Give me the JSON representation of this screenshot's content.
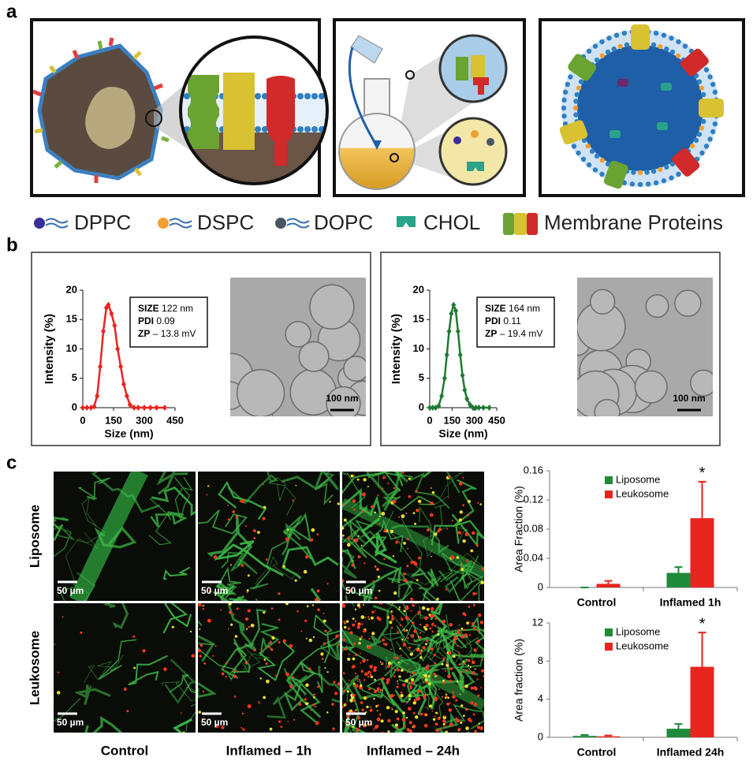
{
  "panel_labels": [
    "a",
    "b",
    "c"
  ],
  "legend": [
    "DPPC",
    "DSPC",
    "DOPC",
    "CHOL",
    "Membrane Proteins"
  ],
  "microscopy": {
    "rows": [
      "Liposome",
      "Leukosome"
    ],
    "columns": [
      "Control",
      "Inflamed – 1h",
      "Inflamed – 24h"
    ],
    "scale_bar": "50 µm"
  },
  "chart_data": [
    {
      "type": "line",
      "ylabel": "Intensity (%)",
      "xlabel": "Size (nm)",
      "xlim": [
        0,
        450
      ],
      "ylim": [
        0,
        20
      ],
      "xticks": [
        0,
        150,
        300,
        450
      ],
      "yticks": [
        0,
        5,
        10,
        15,
        20
      ],
      "series": [
        {
          "color": "#e8251f",
          "x": [
            0,
            20,
            40,
            55,
            70,
            85,
            100,
            115,
            125,
            140,
            155,
            170,
            185,
            200,
            215,
            230,
            250,
            270,
            300,
            330,
            360,
            400
          ],
          "values": [
            0,
            0,
            0,
            0.2,
            2,
            7,
            13,
            17,
            17.5,
            16,
            14,
            10,
            7,
            4,
            2,
            0.5,
            0,
            0,
            0,
            0,
            0,
            0
          ]
        }
      ],
      "stats": [
        {
          "key": "SIZE",
          "value": "122 nm"
        },
        {
          "key": "PDI",
          "value": "0.09"
        },
        {
          "key": "ZP",
          "value": "– 13.8 mV"
        }
      ],
      "image_scale_bar": "100 nm"
    },
    {
      "type": "line",
      "ylabel": "Intensity (%)",
      "xlabel": "Size (nm)",
      "xlim": [
        0,
        450
      ],
      "ylim": [
        0,
        20
      ],
      "xticks": [
        0,
        150,
        300,
        450
      ],
      "yticks": [
        0,
        5,
        10,
        15,
        20
      ],
      "series": [
        {
          "color": "#1e7a32",
          "x": [
            0,
            20,
            40,
            60,
            80,
            100,
            115,
            130,
            145,
            160,
            175,
            190,
            205,
            220,
            235,
            250,
            270,
            290,
            310,
            330,
            360,
            400
          ],
          "values": [
            0,
            0,
            0,
            0.3,
            2,
            5,
            9,
            13,
            16,
            17.5,
            16.5,
            13,
            9,
            5.5,
            3,
            1.5,
            0.5,
            0,
            0,
            0,
            0,
            0
          ]
        }
      ],
      "stats": [
        {
          "key": "SIZE",
          "value": "164 nm"
        },
        {
          "key": "PDI",
          "value": "0.11"
        },
        {
          "key": "ZP",
          "value": "– 19.4 mV"
        }
      ],
      "image_scale_bar": "100 nm"
    },
    {
      "type": "bar",
      "ylabel": "Area Fraction (%)",
      "categories": [
        "Control",
        "Inflamed 1h"
      ],
      "ylim": [
        0,
        0.16
      ],
      "yticks": [
        0,
        0.04,
        0.08,
        0.12,
        0.16
      ],
      "series": [
        {
          "name": "Liposome",
          "color": "#1f8a3c",
          "values": [
            0,
            0.02
          ],
          "errors": [
            0,
            0.008
          ]
        },
        {
          "name": "Leukosome",
          "color": "#e8251f",
          "values": [
            0.005,
            0.095
          ],
          "errors": [
            0.004,
            0.05
          ]
        }
      ],
      "significance": "*"
    },
    {
      "type": "bar",
      "ylabel": "Area fraction (%)",
      "categories": [
        "Control",
        "Inflamed 24h"
      ],
      "ylim": [
        0,
        12
      ],
      "yticks": [
        0,
        4,
        8,
        12
      ],
      "series": [
        {
          "name": "Liposome",
          "color": "#1f8a3c",
          "values": [
            0.15,
            0.9
          ],
          "errors": [
            0.1,
            0.5
          ]
        },
        {
          "name": "Leukosome",
          "color": "#e8251f",
          "values": [
            0.1,
            7.4
          ],
          "errors": [
            0.1,
            3.6
          ]
        }
      ],
      "significance": "*"
    }
  ]
}
